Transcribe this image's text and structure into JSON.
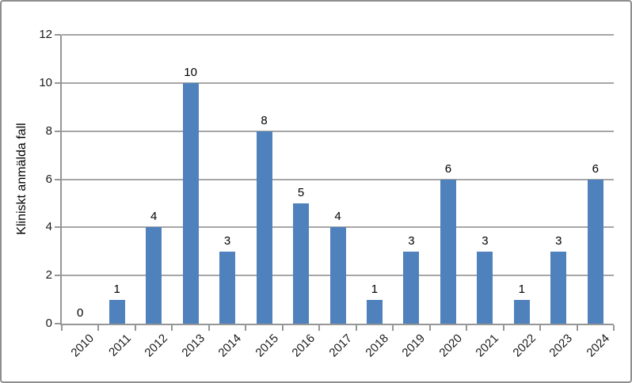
{
  "chart_data": {
    "type": "bar",
    "title": "",
    "categories": [
      "2010",
      "2011",
      "2012",
      "2013",
      "2014",
      "2015",
      "2016",
      "2017",
      "2018",
      "2019",
      "2020",
      "2021",
      "2022",
      "2023",
      "2024"
    ],
    "values": [
      0,
      1,
      4,
      10,
      3,
      8,
      5,
      4,
      1,
      3,
      6,
      3,
      1,
      3,
      6
    ],
    "xlabel": "",
    "ylabel": "Kliniskt anmälda fall",
    "ylim": [
      0,
      12
    ],
    "yticks": [
      0,
      2,
      4,
      6,
      8,
      10,
      12
    ],
    "grid": true,
    "legend": false,
    "data_labels_shown": true,
    "colors": {
      "bar": "#4F81BD",
      "gridline": "#A6A6A6",
      "axis": "#969696",
      "value_label_text": "#000000",
      "tick_label_text": "#1A1A1A",
      "frame_border": "#8E8E8E",
      "background": "#FFFFFF"
    }
  }
}
